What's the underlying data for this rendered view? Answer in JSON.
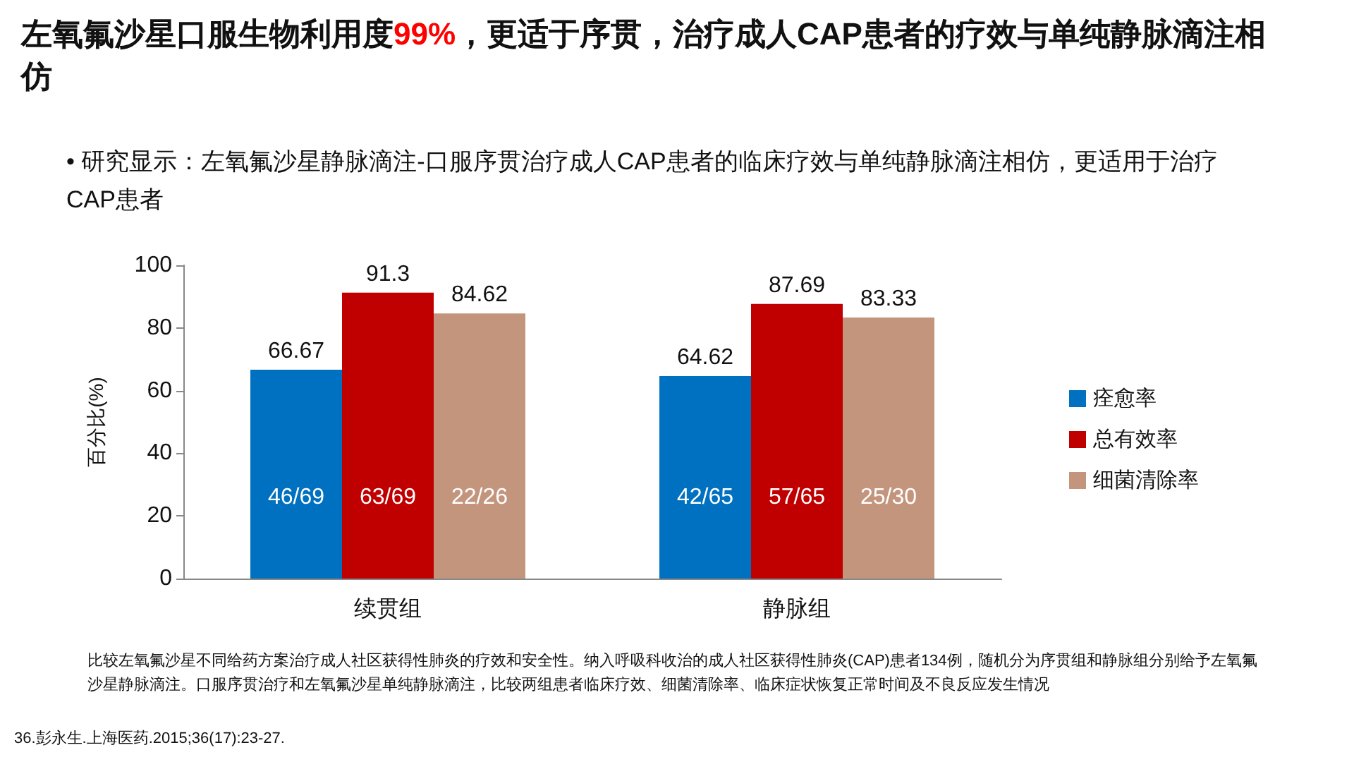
{
  "chart_data": {
    "type": "bar",
    "title": "左氧氟沙星口服生物利用度99%，更适于序贯，治疗成人CAP患者的疗效与单纯静脉滴注相仿",
    "subtitle": "• 研究显示：左氧氟沙星静脉滴注-口服序贯治疗成人CAP患者的临床疗效与单纯静脉滴注相仿，更适用于治疗CAP患者",
    "ylabel": "百分比(%)",
    "categories": [
      "续贯组",
      "静脉组"
    ],
    "series": [
      {
        "name": "痊愈率",
        "color": "#0070c0",
        "values": [
          66.67,
          64.62
        ]
      },
      {
        "name": "总有效率",
        "color": "#c00000",
        "values": [
          91.3,
          87.69
        ]
      },
      {
        "name": "细菌清除率",
        "color": "#c3957d",
        "values": [
          84.62,
          83.33
        ]
      }
    ],
    "ylim": [
      0,
      100
    ],
    "yticks": [
      0,
      20,
      40,
      60,
      80,
      100
    ],
    "grid": false,
    "legend": "right",
    "data_labels": true,
    "annotations": [
      "46/69",
      "63/69",
      "22/26",
      "42/65",
      "57/65",
      "25/30",
      "比较左氧氟沙星不同给药方案治疗成人社区获得性肺炎的疗效和安全性。纳入呼吸科收治的成人社区获得性肺炎(CAP)患者134例，随机分为序贯组和静脉组分别给予左氧氟沙星静脉滴注。口服序贯治疗和左氧氟沙星单纯静脉滴注，比较两组患者临床疗效、细菌清除率、临床症状恢复正常时间及不良反应发生情况",
      "36.彭永生.上海医药.2015;36(17):23-27."
    ]
  }
}
